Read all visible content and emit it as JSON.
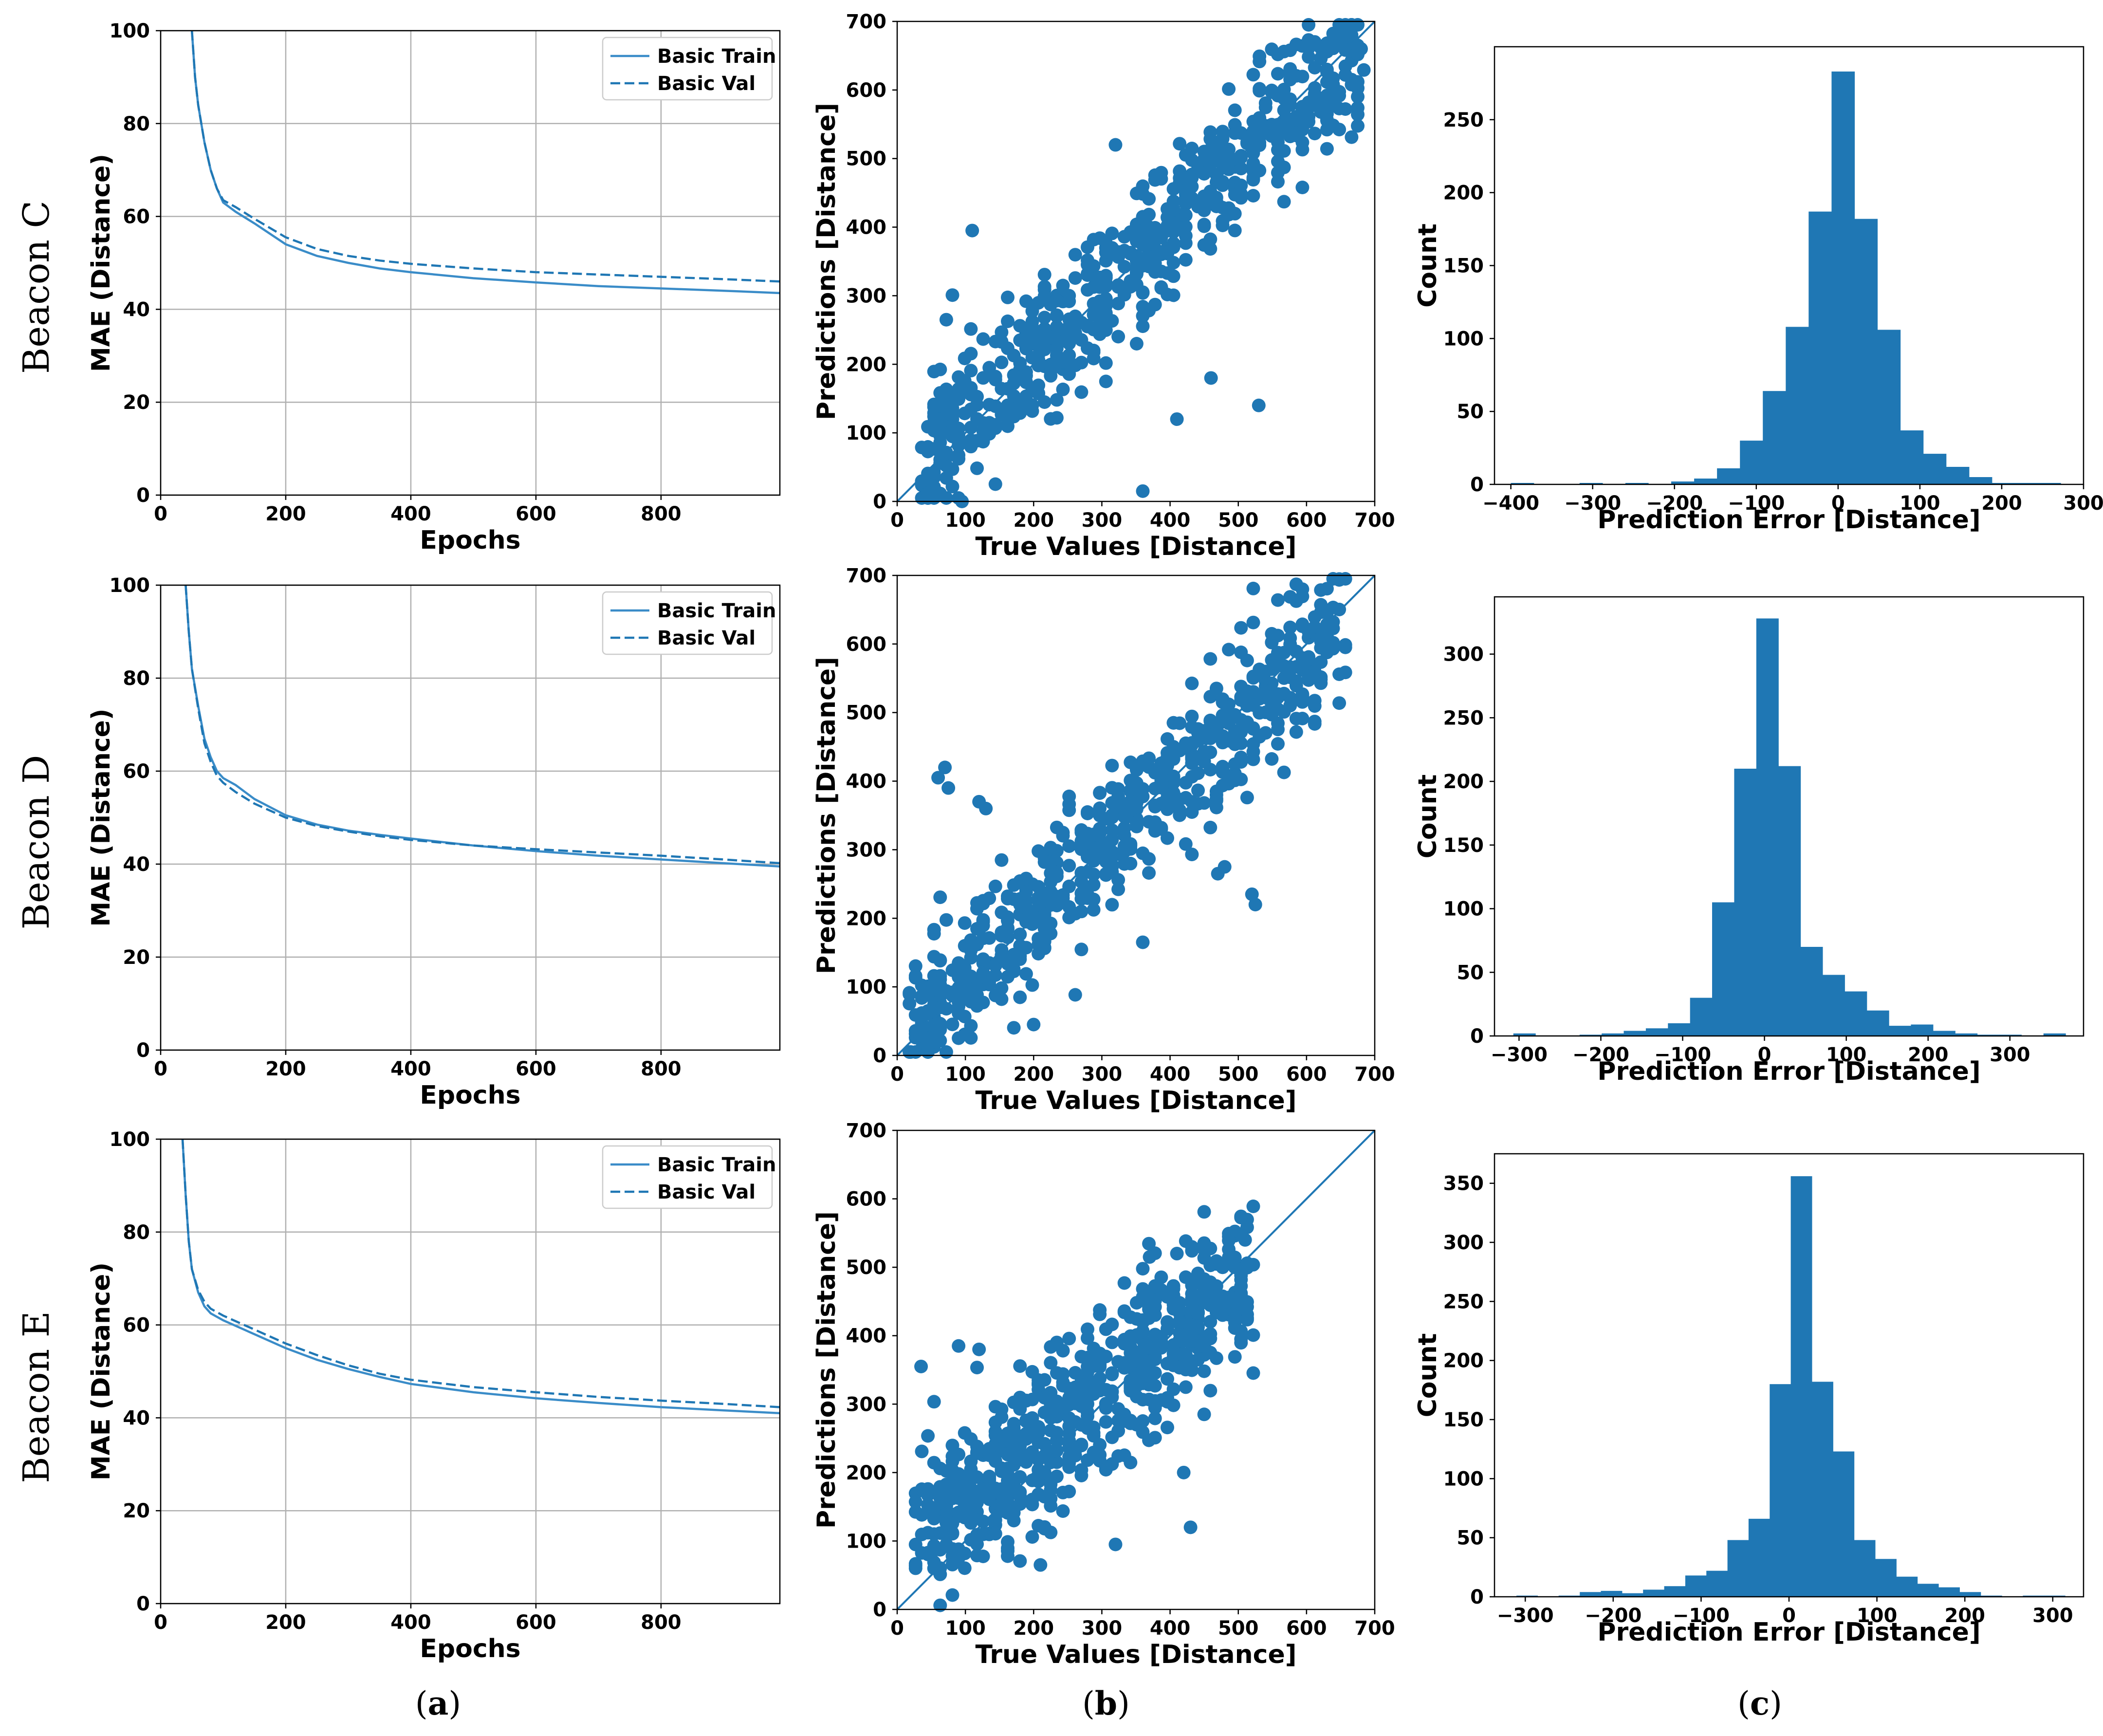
{
  "colors": {
    "primary": "#1f77b4",
    "train_line": "#3a8cc8",
    "grid": "#b0b0b0"
  },
  "panel_labels": {
    "a": "a",
    "b": "b",
    "c": "c"
  },
  "rows": [
    {
      "label": "Beacon C"
    },
    {
      "label": "Beacon D"
    },
    {
      "label": "Beacon E"
    }
  ],
  "chart_data": [
    {
      "id": "C-mae",
      "type": "line",
      "row": "Beacon C",
      "xlabel": "Epochs",
      "ylabel": "MAE (Distance)",
      "xlim": [
        0,
        990
      ],
      "ylim": [
        0,
        100
      ],
      "xticks": [
        0,
        200,
        400,
        600,
        800
      ],
      "yticks": [
        0,
        20,
        40,
        60,
        80,
        100
      ],
      "grid": true,
      "legend_position": "top-right",
      "series": [
        {
          "name": "Basic Train",
          "style": "solid",
          "x": [
            50,
            55,
            60,
            70,
            80,
            90,
            100,
            120,
            150,
            200,
            250,
            300,
            350,
            400,
            500,
            600,
            700,
            800,
            900,
            990
          ],
          "y": [
            100,
            90,
            84,
            76,
            70,
            66,
            63,
            61,
            58.5,
            54,
            51.5,
            50,
            48.8,
            48,
            46.7,
            45.8,
            45,
            44.5,
            44,
            43.5
          ]
        },
        {
          "name": "Basic Val",
          "style": "dashed",
          "x": [
            50,
            55,
            60,
            70,
            80,
            90,
            100,
            120,
            150,
            200,
            250,
            300,
            350,
            400,
            500,
            600,
            700,
            800,
            900,
            990
          ],
          "y": [
            100,
            90,
            84,
            76,
            70,
            66,
            63.5,
            62,
            59.5,
            55.5,
            53,
            51.5,
            50.5,
            49.8,
            48.8,
            48,
            47.5,
            47,
            46.5,
            46
          ]
        }
      ]
    },
    {
      "id": "C-scatter",
      "type": "scatter",
      "row": "Beacon C",
      "xlabel": "True Values [Distance]",
      "ylabel": "Predictions [Distance]",
      "xlim": [
        0,
        700
      ],
      "ylim": [
        0,
        700
      ],
      "xticks": [
        0,
        100,
        200,
        300,
        400,
        500,
        600,
        700
      ],
      "yticks": [
        0,
        100,
        200,
        300,
        400,
        500,
        600,
        700
      ],
      "identity_line": true,
      "trend": {
        "x_range": [
          35,
          680
        ],
        "slope": 0.93,
        "intercept": 30,
        "spread": 55,
        "n": 650,
        "seed": 11
      },
      "outliers": [
        [
          360,
          15
        ],
        [
          410,
          120
        ],
        [
          530,
          140
        ],
        [
          460,
          180
        ],
        [
          95,
          0
        ],
        [
          110,
          395
        ],
        [
          320,
          520
        ],
        [
          680,
          660
        ],
        [
          650,
          680
        ]
      ]
    },
    {
      "id": "C-hist",
      "type": "bar",
      "row": "Beacon C",
      "xlabel": "Prediction Error [Distance]",
      "ylabel": "Count",
      "xlim": [
        -420,
        300
      ],
      "ylim": [
        0,
        300
      ],
      "xticks": [
        -400,
        -300,
        -200,
        -100,
        0,
        100,
        200,
        300
      ],
      "yticks": [
        0,
        50,
        100,
        150,
        200,
        250
      ],
      "bin_edges": [
        -400,
        -372,
        -344,
        -316,
        -288,
        -260,
        -232,
        -204,
        -176,
        -148,
        -120,
        -92,
        -64,
        -36,
        -8,
        20,
        48,
        76,
        104,
        132,
        160,
        188,
        216,
        244,
        272
      ],
      "counts": [
        1,
        0,
        0,
        1,
        0,
        1,
        0,
        2,
        4,
        11,
        30,
        64,
        108,
        187,
        283,
        182,
        106,
        37,
        21,
        12,
        5,
        1,
        1,
        1
      ]
    },
    {
      "id": "D-mae",
      "type": "line",
      "row": "Beacon D",
      "xlabel": "Epochs",
      "ylabel": "MAE (Distance)",
      "xlim": [
        0,
        990
      ],
      "ylim": [
        0,
        100
      ],
      "xticks": [
        0,
        200,
        400,
        600,
        800
      ],
      "yticks": [
        0,
        20,
        40,
        60,
        80,
        100
      ],
      "grid": true,
      "legend_position": "top-right",
      "series": [
        {
          "name": "Basic Train",
          "style": "solid",
          "x": [
            40,
            45,
            50,
            60,
            70,
            80,
            90,
            100,
            120,
            150,
            200,
            250,
            300,
            350,
            400,
            500,
            600,
            700,
            800,
            900,
            990
          ],
          "y": [
            100,
            90,
            82,
            74,
            67,
            63,
            60,
            58.5,
            57,
            54,
            50.5,
            48.5,
            47.2,
            46.3,
            45.5,
            44,
            42.8,
            41.8,
            41,
            40.2,
            39.5
          ]
        },
        {
          "name": "Basic Val",
          "style": "dashed",
          "x": [
            40,
            45,
            50,
            60,
            70,
            80,
            90,
            100,
            120,
            150,
            200,
            250,
            300,
            350,
            400,
            500,
            600,
            700,
            800,
            900,
            990
          ],
          "y": [
            100,
            90,
            82,
            73.5,
            66,
            62,
            59,
            57.5,
            55.5,
            53,
            50,
            48.2,
            47,
            46,
            45.2,
            44,
            43.2,
            42.5,
            41.8,
            41,
            40.2
          ]
        }
      ]
    },
    {
      "id": "D-scatter",
      "type": "scatter",
      "row": "Beacon D",
      "xlabel": "True Values [Distance]",
      "ylabel": "Predictions [Distance]",
      "xlim": [
        0,
        700
      ],
      "ylim": [
        0,
        700
      ],
      "xticks": [
        0,
        100,
        200,
        300,
        400,
        500,
        600,
        700
      ],
      "yticks": [
        0,
        100,
        200,
        300,
        400,
        500,
        600,
        700
      ],
      "identity_line": true,
      "trend": {
        "x_range": [
          15,
          655
        ],
        "slope": 0.92,
        "intercept": 30,
        "spread": 50,
        "n": 650,
        "seed": 23
      },
      "outliers": [
        [
          60,
          405
        ],
        [
          70,
          420
        ],
        [
          75,
          390
        ],
        [
          120,
          370
        ],
        [
          130,
          360
        ],
        [
          200,
          45
        ],
        [
          360,
          165
        ],
        [
          520,
          235
        ],
        [
          525,
          220
        ],
        [
          470,
          265
        ],
        [
          480,
          275
        ],
        [
          20,
          5
        ]
      ]
    },
    {
      "id": "D-hist",
      "type": "bar",
      "row": "Beacon D",
      "xlabel": "Prediction Error [Distance]",
      "ylabel": "Count",
      "xlim": [
        -330,
        390
      ],
      "ylim": [
        0,
        345
      ],
      "xticks": [
        -300,
        -200,
        -100,
        0,
        100,
        200,
        300
      ],
      "yticks": [
        0,
        50,
        100,
        150,
        200,
        250,
        300
      ],
      "bin_edges": [
        -307,
        -280,
        -253,
        -226,
        -199,
        -172,
        -145,
        -118,
        -91,
        -64,
        -37,
        -10,
        17,
        44,
        71,
        98,
        125,
        152,
        179,
        206,
        233,
        260,
        287,
        314,
        341,
        368
      ],
      "counts": [
        2,
        0,
        0,
        1,
        2,
        4,
        6,
        10,
        30,
        105,
        210,
        328,
        212,
        70,
        48,
        35,
        20,
        8,
        9,
        4,
        2,
        1,
        1,
        0,
        2
      ]
    },
    {
      "id": "E-mae",
      "type": "line",
      "row": "Beacon E",
      "xlabel": "Epochs",
      "ylabel": "MAE (Distance)",
      "xlim": [
        0,
        990
      ],
      "ylim": [
        0,
        100
      ],
      "xticks": [
        0,
        200,
        400,
        600,
        800
      ],
      "yticks": [
        0,
        20,
        40,
        60,
        80,
        100
      ],
      "grid": true,
      "legend_position": "top-right",
      "series": [
        {
          "name": "Basic Train",
          "style": "solid",
          "x": [
            35,
            40,
            45,
            50,
            60,
            70,
            80,
            100,
            150,
            200,
            250,
            300,
            350,
            400,
            500,
            600,
            700,
            800,
            900,
            990
          ],
          "y": [
            100,
            88,
            78,
            72,
            67,
            64,
            62.5,
            61,
            58,
            55,
            52.5,
            50.5,
            48.8,
            47.3,
            45.5,
            44.2,
            43.2,
            42.3,
            41.6,
            41
          ]
        },
        {
          "name": "Basic Val",
          "style": "dashed",
          "x": [
            35,
            40,
            45,
            50,
            60,
            70,
            80,
            100,
            150,
            200,
            250,
            300,
            350,
            400,
            500,
            600,
            700,
            800,
            900,
            990
          ],
          "y": [
            100,
            88,
            78,
            72,
            67.5,
            65,
            63.5,
            62,
            59,
            56,
            53.5,
            51.3,
            49.5,
            48.2,
            46.6,
            45.5,
            44.5,
            43.7,
            43,
            42.3
          ]
        }
      ]
    },
    {
      "id": "E-scatter",
      "type": "scatter",
      "row": "Beacon E",
      "xlabel": "True Values [Distance]",
      "ylabel": "Predictions [Distance]",
      "xlim": [
        0,
        700
      ],
      "ylim": [
        0,
        700
      ],
      "xticks": [
        0,
        100,
        200,
        300,
        400,
        500,
        600,
        700
      ],
      "yticks": [
        0,
        100,
        200,
        300,
        400,
        500,
        600,
        700
      ],
      "identity_line": true,
      "trend": {
        "x_range": [
          25,
          520
        ],
        "slope": 0.78,
        "intercept": 80,
        "spread": 60,
        "n": 650,
        "seed": 37
      },
      "outliers": [
        [
          35,
          355
        ],
        [
          90,
          385
        ],
        [
          120,
          380
        ],
        [
          320,
          95
        ],
        [
          430,
          120
        ],
        [
          420,
          200
        ],
        [
          210,
          65
        ],
        [
          410,
          520
        ],
        [
          370,
          515
        ],
        [
          510,
          540
        ]
      ]
    },
    {
      "id": "E-hist",
      "type": "bar",
      "row": "Beacon E",
      "xlabel": "Prediction Error [Distance]",
      "ylabel": "Count",
      "xlim": [
        -335,
        335
      ],
      "ylim": [
        0,
        375
      ],
      "xticks": [
        -300,
        -200,
        -100,
        0,
        100,
        200,
        300
      ],
      "yticks": [
        0,
        50,
        100,
        150,
        200,
        250,
        300,
        350
      ],
      "bin_edges": [
        -310,
        -286,
        -262,
        -238,
        -214,
        -190,
        -166,
        -142,
        -118,
        -94,
        -70,
        -46,
        -22,
        2,
        26,
        50,
        74,
        98,
        122,
        146,
        170,
        194,
        218,
        242,
        266,
        290,
        314
      ],
      "counts": [
        1,
        0,
        1,
        4,
        5,
        3,
        6,
        9,
        18,
        22,
        48,
        66,
        180,
        356,
        182,
        123,
        48,
        32,
        17,
        11,
        8,
        4,
        1,
        0,
        1,
        1
      ]
    }
  ]
}
